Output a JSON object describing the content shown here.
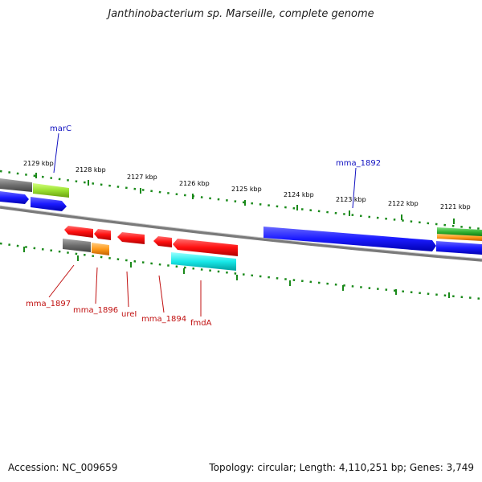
{
  "title": "Janthinobacterium sp. Marseille, complete genome",
  "footer": {
    "accession": "Accession: NC_009659",
    "topology": "Topology: circular; Length: 4,110,251 bp; Genes: 3,749"
  },
  "colors": {
    "plus_strand_blue": "#1a1aff",
    "gene_red": "#ff1010",
    "gene_gray": "#6e6e6e",
    "gene_green": "#9ae030",
    "gene_orange": "#ff9a1a",
    "gene_cyan": "#18e8e8",
    "tick_green": "#1a8a1a",
    "backbone_gray": "#808080"
  },
  "scale_labels": [
    "2129 kbp",
    "2128 kbp",
    "2127 kbp",
    "2126 kbp",
    "2125 kbp",
    "2124 kbp",
    "2123 kbp",
    "2122 kbp",
    "2121 kbp"
  ],
  "gene_labels": {
    "top": [
      "marC",
      "mma_1892"
    ],
    "bottom": [
      "mma_1897",
      "mma_1896",
      "ureI",
      "mma_1894",
      "fmdA"
    ]
  }
}
